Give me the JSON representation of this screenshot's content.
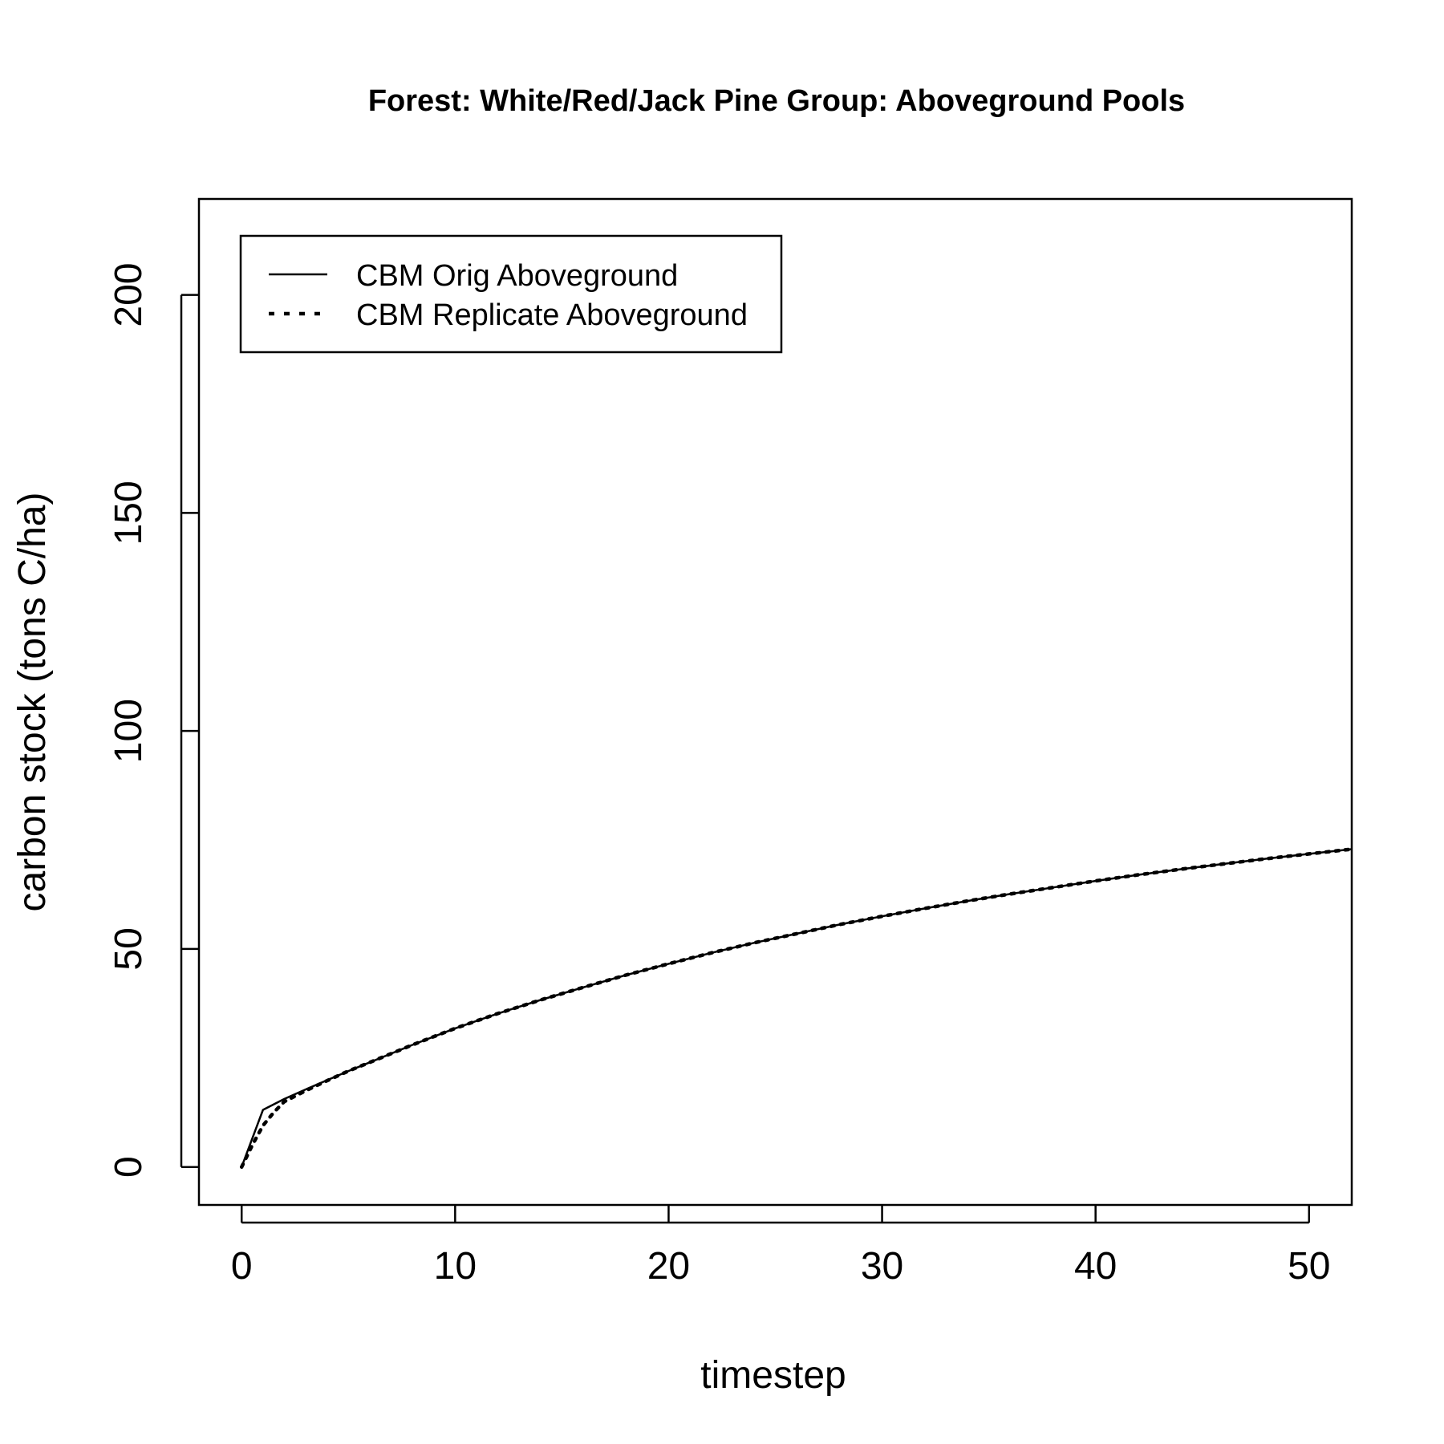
{
  "chart_data": {
    "type": "line",
    "title": "Forest: White/Red/Jack Pine Group: Aboveground Pools",
    "xlabel": "timestep",
    "ylabel": "carbon stock (tons C/ha)",
    "xlim": [
      -2,
      52
    ],
    "ylim": [
      -8.7,
      222
    ],
    "x_ticks": [
      "0",
      "10",
      "20",
      "30",
      "40",
      "50"
    ],
    "y_ticks": [
      "0",
      "50",
      "100",
      "150",
      "200"
    ],
    "grid": false,
    "legend_position": "top-left",
    "series": [
      {
        "name": "CBM Orig Aboveground",
        "line_style": "solid",
        "color": "#000000",
        "points": [
          [
            0,
            0
          ],
          [
            1,
            13.1
          ],
          [
            2,
            15.6
          ],
          [
            3,
            17.8
          ],
          [
            4,
            19.9
          ],
          [
            5,
            22.0
          ],
          [
            6,
            24.0
          ],
          [
            7,
            26.0
          ],
          [
            8,
            28.0
          ],
          [
            10,
            31.8
          ],
          [
            12,
            35.2
          ],
          [
            14,
            38.3
          ],
          [
            16,
            41.2
          ],
          [
            18,
            44.0
          ],
          [
            20,
            46.6
          ],
          [
            22,
            49.1
          ],
          [
            24,
            51.4
          ],
          [
            26,
            53.5
          ],
          [
            28,
            55.6
          ],
          [
            30,
            57.5
          ],
          [
            32,
            59.3
          ],
          [
            34,
            61.0
          ],
          [
            36,
            62.6
          ],
          [
            38,
            64.1
          ],
          [
            40,
            65.6
          ],
          [
            42,
            67.0
          ],
          [
            44,
            68.3
          ],
          [
            46,
            69.5
          ],
          [
            48,
            70.7
          ],
          [
            50,
            71.8
          ],
          [
            52,
            72.9
          ]
        ]
      },
      {
        "name": "CBM Replicate Aboveground",
        "line_style": "dotted",
        "color": "#000000",
        "points": [
          [
            0,
            0
          ],
          [
            0.5,
            5.0
          ],
          [
            1,
            9.5
          ],
          [
            1.5,
            12.5
          ],
          [
            2,
            15.0
          ],
          [
            3,
            17.5
          ],
          [
            4,
            19.8
          ],
          [
            5,
            22.0
          ],
          [
            6,
            24.0
          ],
          [
            7,
            26.0
          ],
          [
            8,
            28.0
          ],
          [
            10,
            31.8
          ],
          [
            12,
            35.2
          ],
          [
            14,
            38.3
          ],
          [
            16,
            41.2
          ],
          [
            18,
            44.0
          ],
          [
            20,
            46.6
          ],
          [
            22,
            49.1
          ],
          [
            24,
            51.4
          ],
          [
            26,
            53.5
          ],
          [
            28,
            55.6
          ],
          [
            30,
            57.5
          ],
          [
            32,
            59.3
          ],
          [
            34,
            61.0
          ],
          [
            36,
            62.6
          ],
          [
            38,
            64.1
          ],
          [
            40,
            65.6
          ],
          [
            42,
            67.0
          ],
          [
            44,
            68.3
          ],
          [
            46,
            69.5
          ],
          [
            48,
            70.7
          ],
          [
            50,
            71.8
          ],
          [
            52,
            72.9
          ]
        ]
      }
    ]
  }
}
